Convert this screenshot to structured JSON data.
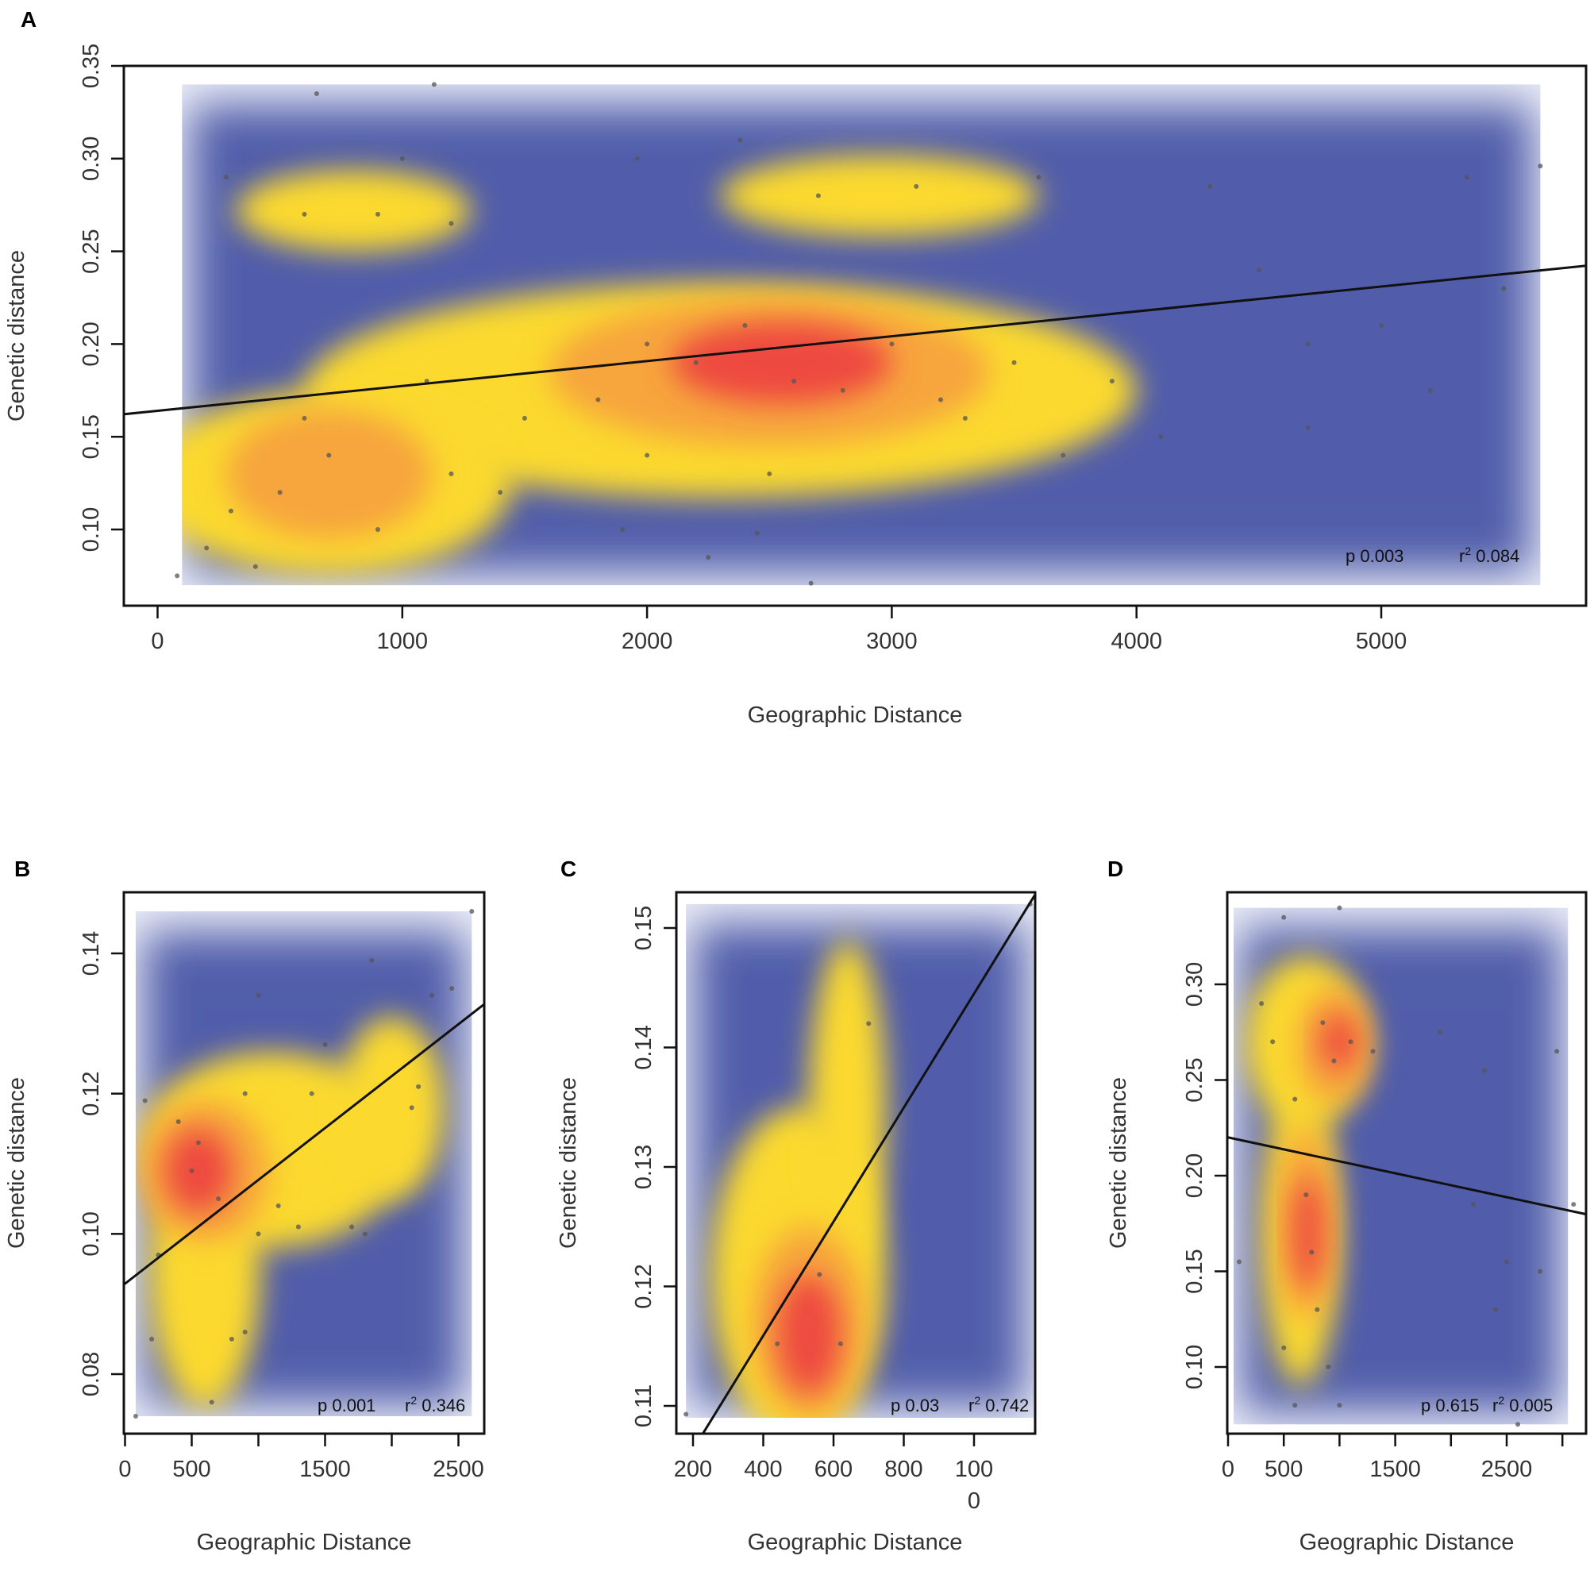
{
  "chart_data": [
    {
      "panel": "A",
      "type": "scatter",
      "xlabel": "Geographic Distance",
      "ylabel": "Genetic distance",
      "xlim": [
        -140,
        5840
      ],
      "ylim": [
        0.06,
        0.35
      ],
      "xticks": [
        "0",
        "1000",
        "2000",
        "3000",
        "4000",
        "5000"
      ],
      "xtick_values": [
        0,
        1000,
        2000,
        3000,
        4000,
        5000
      ],
      "yticks": [
        "0.10",
        "0.15",
        "0.20",
        "0.25",
        "0.30",
        "0.35"
      ],
      "ytick_values": [
        0.1,
        0.15,
        0.2,
        0.25,
        0.3,
        0.35
      ],
      "stats": {
        "p_label": "p",
        "p": "0.003",
        "r2_label": "r",
        "r2_sup": "2",
        "r2": "0.084"
      },
      "regression": {
        "intercept": 0.164,
        "slope": 1.34e-05
      },
      "density_extent": {
        "x": [
          100,
          5650
        ],
        "y": [
          0.07,
          0.34
        ]
      },
      "density_peaks": [
        {
          "level": "yellow",
          "x": 800,
          "y": 0.272,
          "rx": 480,
          "ry": 0.022
        },
        {
          "level": "yellow",
          "x": 2950,
          "y": 0.28,
          "rx": 650,
          "ry": 0.022
        },
        {
          "level": "yellow",
          "x": 2300,
          "y": 0.175,
          "rx": 1700,
          "ry": 0.058
        },
        {
          "level": "yellow",
          "x": 700,
          "y": 0.125,
          "rx": 750,
          "ry": 0.05
        },
        {
          "level": "orange",
          "x": 700,
          "y": 0.13,
          "rx": 420,
          "ry": 0.035
        },
        {
          "level": "orange",
          "x": 2500,
          "y": 0.185,
          "rx": 900,
          "ry": 0.04
        },
        {
          "level": "red",
          "x": 2550,
          "y": 0.19,
          "rx": 450,
          "ry": 0.022
        }
      ],
      "points": [
        [
          80,
          0.075
        ],
        [
          1130,
          0.34
        ],
        [
          650,
          0.335
        ],
        [
          2670,
          0.071
        ],
        [
          5650,
          0.296
        ],
        [
          280,
          0.29
        ],
        [
          1000,
          0.3
        ],
        [
          1960,
          0.3
        ],
        [
          2380,
          0.31
        ],
        [
          3600,
          0.29
        ],
        [
          4300,
          0.285
        ],
        [
          5350,
          0.29
        ],
        [
          600,
          0.27
        ],
        [
          900,
          0.27
        ],
        [
          1200,
          0.265
        ],
        [
          2700,
          0.28
        ],
        [
          3100,
          0.285
        ],
        [
          4700,
          0.2
        ],
        [
          5000,
          0.21
        ],
        [
          4100,
          0.15
        ],
        [
          4700,
          0.155
        ],
        [
          300,
          0.11
        ],
        [
          500,
          0.12
        ],
        [
          700,
          0.14
        ],
        [
          900,
          0.1
        ],
        [
          1200,
          0.13
        ],
        [
          1500,
          0.16
        ],
        [
          1800,
          0.17
        ],
        [
          2000,
          0.2
        ],
        [
          2200,
          0.19
        ],
        [
          2400,
          0.21
        ],
        [
          2600,
          0.18
        ],
        [
          2800,
          0.175
        ],
        [
          3000,
          0.2
        ],
        [
          3200,
          0.17
        ],
        [
          3500,
          0.19
        ],
        [
          3700,
          0.14
        ],
        [
          1900,
          0.1
        ],
        [
          2250,
          0.085
        ],
        [
          2450,
          0.098
        ],
        [
          200,
          0.09
        ],
        [
          400,
          0.08
        ],
        [
          600,
          0.16
        ],
        [
          1100,
          0.18
        ],
        [
          1400,
          0.12
        ],
        [
          2000,
          0.14
        ],
        [
          2500,
          0.13
        ],
        [
          3300,
          0.16
        ],
        [
          3900,
          0.18
        ],
        [
          4500,
          0.24
        ],
        [
          5500,
          0.23
        ],
        [
          5200,
          0.175
        ]
      ]
    },
    {
      "panel": "B",
      "type": "scatter",
      "xlabel": "Geographic Distance",
      "ylabel": "Genetic distance",
      "xlim": [
        -10,
        2690
      ],
      "ylim": [
        0.071,
        0.149
      ],
      "xticks": [
        "0",
        "500",
        "1500",
        "2500"
      ],
      "xtick_values": [
        0,
        500,
        1500,
        2500
      ],
      "xtick_marks": [
        0,
        500,
        1000,
        1500,
        2000,
        2500
      ],
      "yticks": [
        "0.08",
        "0.10",
        "0.12",
        "0.14"
      ],
      "ytick_values": [
        0.08,
        0.1,
        0.12,
        0.14
      ],
      "stats": {
        "p_label": "p",
        "p": "0.001",
        "r2_label": "r",
        "r2_sup": "2",
        "r2": "0.346"
      },
      "regression": {
        "intercept": 0.0929,
        "slope": 1.48e-05
      },
      "density_extent": {
        "x": [
          80,
          2600
        ],
        "y": [
          0.074,
          0.146
        ]
      },
      "density_peaks": [
        {
          "level": "yellow",
          "x": 1100,
          "y": 0.112,
          "rx": 1000,
          "ry": 0.014
        },
        {
          "level": "yellow",
          "x": 600,
          "y": 0.095,
          "rx": 420,
          "ry": 0.02
        },
        {
          "level": "yellow",
          "x": 2000,
          "y": 0.118,
          "rx": 400,
          "ry": 0.013
        },
        {
          "level": "orange",
          "x": 600,
          "y": 0.109,
          "rx": 480,
          "ry": 0.01
        },
        {
          "level": "red",
          "x": 550,
          "y": 0.109,
          "rx": 250,
          "ry": 0.006
        }
      ],
      "points": [
        [
          80,
          0.074
        ],
        [
          2600,
          0.146
        ],
        [
          1000,
          0.134
        ],
        [
          1850,
          0.139
        ],
        [
          2300,
          0.134
        ],
        [
          2450,
          0.135
        ],
        [
          150,
          0.119
        ],
        [
          250,
          0.097
        ],
        [
          200,
          0.085
        ],
        [
          400,
          0.116
        ],
        [
          500,
          0.109
        ],
        [
          550,
          0.113
        ],
        [
          700,
          0.105
        ],
        [
          800,
          0.085
        ],
        [
          900,
          0.086
        ],
        [
          650,
          0.076
        ],
        [
          1000,
          0.1
        ],
        [
          1150,
          0.104
        ],
        [
          1300,
          0.101
        ],
        [
          1500,
          0.127
        ],
        [
          1400,
          0.12
        ],
        [
          1800,
          0.1
        ],
        [
          1700,
          0.101
        ],
        [
          2150,
          0.118
        ],
        [
          2200,
          0.121
        ],
        [
          900,
          0.12
        ]
      ]
    },
    {
      "panel": "C",
      "type": "scatter",
      "xlabel": "Geographic Distance",
      "ylabel": "Genetic distance",
      "xlim": [
        155,
        1175
      ],
      "ylim": [
        0.1077,
        0.153
      ],
      "xticks": [
        "200",
        "400",
        "600",
        "800",
        "100\n0"
      ],
      "xtick_values": [
        200,
        400,
        600,
        800,
        1000
      ],
      "yticks": [
        "0.11",
        "0.12",
        "0.13",
        "0.14",
        "0.15"
      ],
      "ytick_values": [
        0.11,
        0.12,
        0.13,
        0.14,
        0.15
      ],
      "stats": {
        "p_label": "p",
        "p": "0.03",
        "r2_label": "r",
        "r2_sup": "2",
        "r2": "0.742"
      },
      "regression": {
        "intercept": 0.0968,
        "slope": 4.77e-05
      },
      "density_extent": {
        "x": [
          180,
          1170
        ],
        "y": [
          0.109,
          0.152
        ]
      },
      "density_peaks": [
        {
          "level": "yellow",
          "x": 500,
          "y": 0.121,
          "rx": 250,
          "ry": 0.014
        },
        {
          "level": "yellow",
          "x": 640,
          "y": 0.135,
          "rx": 110,
          "ry": 0.014
        },
        {
          "level": "orange",
          "x": 530,
          "y": 0.117,
          "rx": 160,
          "ry": 0.008
        },
        {
          "level": "red",
          "x": 530,
          "y": 0.116,
          "rx": 90,
          "ry": 0.005
        }
      ],
      "points": [
        [
          180,
          0.1093
        ],
        [
          440,
          0.1152
        ],
        [
          560,
          0.121
        ],
        [
          620,
          0.1152
        ],
        [
          700,
          0.142
        ],
        [
          1160,
          0.152
        ]
      ]
    },
    {
      "panel": "D",
      "type": "scatter",
      "xlabel": "Geographic Distance",
      "ylabel": "Genetic distance",
      "xlim": [
        -5,
        3215
      ],
      "ylim": [
        0.055,
        0.345
      ],
      "xticks": [
        "0",
        "500",
        "1500",
        "2500"
      ],
      "xtick_values": [
        0,
        500,
        1500,
        2500
      ],
      "xtick_marks": [
        0,
        500,
        1000,
        1500,
        2000,
        2500,
        3000
      ],
      "yticks": [
        "0.10",
        "0.15",
        "0.20",
        "0.25",
        "0.30"
      ],
      "ytick_values": [
        0.1,
        0.15,
        0.2,
        0.25,
        0.3
      ],
      "stats": {
        "p_label": "p",
        "p": "0.615",
        "r2_label": "r",
        "r2_sup": "2",
        "r2": "0.005"
      },
      "regression": {
        "intercept": 0.22,
        "slope": -1.25e-05
      },
      "density_extent": {
        "x": [
          50,
          3050
        ],
        "y": [
          0.07,
          0.34
        ]
      },
      "density_peaks": [
        {
          "level": "yellow",
          "x": 700,
          "y": 0.27,
          "rx": 550,
          "ry": 0.045
        },
        {
          "level": "yellow",
          "x": 650,
          "y": 0.17,
          "rx": 350,
          "ry": 0.08
        },
        {
          "level": "orange",
          "x": 950,
          "y": 0.268,
          "rx": 330,
          "ry": 0.03
        },
        {
          "level": "orange",
          "x": 700,
          "y": 0.175,
          "rx": 250,
          "ry": 0.05
        },
        {
          "level": "red",
          "x": 720,
          "y": 0.17,
          "rx": 140,
          "ry": 0.03
        },
        {
          "level": "red",
          "x": 1000,
          "y": 0.27,
          "rx": 160,
          "ry": 0.015
        }
      ],
      "points": [
        [
          1000,
          0.34
        ],
        [
          500,
          0.335
        ],
        [
          100,
          0.155
        ],
        [
          300,
          0.29
        ],
        [
          400,
          0.27
        ],
        [
          600,
          0.24
        ],
        [
          700,
          0.19
        ],
        [
          750,
          0.16
        ],
        [
          800,
          0.13
        ],
        [
          850,
          0.28
        ],
        [
          950,
          0.26
        ],
        [
          1100,
          0.27
        ],
        [
          1300,
          0.265
        ],
        [
          500,
          0.11
        ],
        [
          600,
          0.08
        ],
        [
          900,
          0.1
        ],
        [
          1000,
          0.08
        ],
        [
          2300,
          0.255
        ],
        [
          2200,
          0.185
        ],
        [
          2500,
          0.155
        ],
        [
          2800,
          0.15
        ],
        [
          2950,
          0.265
        ],
        [
          2400,
          0.13
        ],
        [
          2600,
          0.07
        ],
        [
          3100,
          0.185
        ],
        [
          1900,
          0.275
        ]
      ]
    }
  ],
  "labels": {
    "A": "A",
    "B": "B",
    "C": "C",
    "D": "D"
  }
}
